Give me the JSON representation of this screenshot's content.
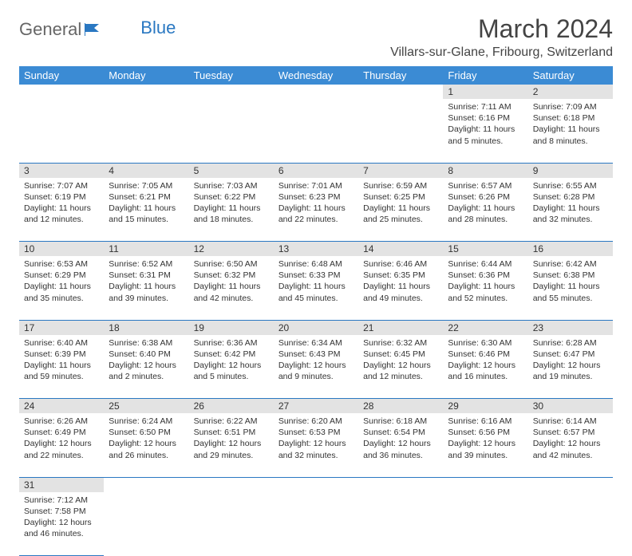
{
  "logo": {
    "text1": "General",
    "text2": "Blue"
  },
  "title": "March 2024",
  "location": "Villars-sur-Glane, Fribourg, Switzerland",
  "colors": {
    "header_bg": "#3b8bd4",
    "header_text": "#ffffff",
    "daynum_bg": "#e3e3e3",
    "row_divider": "#2a78c2",
    "text": "#333333",
    "logo_blue": "#2a78c2"
  },
  "layout": {
    "columns": 7,
    "rows": 6,
    "cell_font_size": 10.5,
    "header_font_size": 13,
    "title_font_size": 32,
    "location_font_size": 16
  },
  "days_of_week": [
    "Sunday",
    "Monday",
    "Tuesday",
    "Wednesday",
    "Thursday",
    "Friday",
    "Saturday"
  ],
  "cells": [
    {
      "day": "",
      "sunrise": "",
      "sunset": "",
      "daylight": ""
    },
    {
      "day": "",
      "sunrise": "",
      "sunset": "",
      "daylight": ""
    },
    {
      "day": "",
      "sunrise": "",
      "sunset": "",
      "daylight": ""
    },
    {
      "day": "",
      "sunrise": "",
      "sunset": "",
      "daylight": ""
    },
    {
      "day": "",
      "sunrise": "",
      "sunset": "",
      "daylight": ""
    },
    {
      "day": "1",
      "sunrise": "Sunrise: 7:11 AM",
      "sunset": "Sunset: 6:16 PM",
      "daylight": "Daylight: 11 hours and 5 minutes."
    },
    {
      "day": "2",
      "sunrise": "Sunrise: 7:09 AM",
      "sunset": "Sunset: 6:18 PM",
      "daylight": "Daylight: 11 hours and 8 minutes."
    },
    {
      "day": "3",
      "sunrise": "Sunrise: 7:07 AM",
      "sunset": "Sunset: 6:19 PM",
      "daylight": "Daylight: 11 hours and 12 minutes."
    },
    {
      "day": "4",
      "sunrise": "Sunrise: 7:05 AM",
      "sunset": "Sunset: 6:21 PM",
      "daylight": "Daylight: 11 hours and 15 minutes."
    },
    {
      "day": "5",
      "sunrise": "Sunrise: 7:03 AM",
      "sunset": "Sunset: 6:22 PM",
      "daylight": "Daylight: 11 hours and 18 minutes."
    },
    {
      "day": "6",
      "sunrise": "Sunrise: 7:01 AM",
      "sunset": "Sunset: 6:23 PM",
      "daylight": "Daylight: 11 hours and 22 minutes."
    },
    {
      "day": "7",
      "sunrise": "Sunrise: 6:59 AM",
      "sunset": "Sunset: 6:25 PM",
      "daylight": "Daylight: 11 hours and 25 minutes."
    },
    {
      "day": "8",
      "sunrise": "Sunrise: 6:57 AM",
      "sunset": "Sunset: 6:26 PM",
      "daylight": "Daylight: 11 hours and 28 minutes."
    },
    {
      "day": "9",
      "sunrise": "Sunrise: 6:55 AM",
      "sunset": "Sunset: 6:28 PM",
      "daylight": "Daylight: 11 hours and 32 minutes."
    },
    {
      "day": "10",
      "sunrise": "Sunrise: 6:53 AM",
      "sunset": "Sunset: 6:29 PM",
      "daylight": "Daylight: 11 hours and 35 minutes."
    },
    {
      "day": "11",
      "sunrise": "Sunrise: 6:52 AM",
      "sunset": "Sunset: 6:31 PM",
      "daylight": "Daylight: 11 hours and 39 minutes."
    },
    {
      "day": "12",
      "sunrise": "Sunrise: 6:50 AM",
      "sunset": "Sunset: 6:32 PM",
      "daylight": "Daylight: 11 hours and 42 minutes."
    },
    {
      "day": "13",
      "sunrise": "Sunrise: 6:48 AM",
      "sunset": "Sunset: 6:33 PM",
      "daylight": "Daylight: 11 hours and 45 minutes."
    },
    {
      "day": "14",
      "sunrise": "Sunrise: 6:46 AM",
      "sunset": "Sunset: 6:35 PM",
      "daylight": "Daylight: 11 hours and 49 minutes."
    },
    {
      "day": "15",
      "sunrise": "Sunrise: 6:44 AM",
      "sunset": "Sunset: 6:36 PM",
      "daylight": "Daylight: 11 hours and 52 minutes."
    },
    {
      "day": "16",
      "sunrise": "Sunrise: 6:42 AM",
      "sunset": "Sunset: 6:38 PM",
      "daylight": "Daylight: 11 hours and 55 minutes."
    },
    {
      "day": "17",
      "sunrise": "Sunrise: 6:40 AM",
      "sunset": "Sunset: 6:39 PM",
      "daylight": "Daylight: 11 hours and 59 minutes."
    },
    {
      "day": "18",
      "sunrise": "Sunrise: 6:38 AM",
      "sunset": "Sunset: 6:40 PM",
      "daylight": "Daylight: 12 hours and 2 minutes."
    },
    {
      "day": "19",
      "sunrise": "Sunrise: 6:36 AM",
      "sunset": "Sunset: 6:42 PM",
      "daylight": "Daylight: 12 hours and 5 minutes."
    },
    {
      "day": "20",
      "sunrise": "Sunrise: 6:34 AM",
      "sunset": "Sunset: 6:43 PM",
      "daylight": "Daylight: 12 hours and 9 minutes."
    },
    {
      "day": "21",
      "sunrise": "Sunrise: 6:32 AM",
      "sunset": "Sunset: 6:45 PM",
      "daylight": "Daylight: 12 hours and 12 minutes."
    },
    {
      "day": "22",
      "sunrise": "Sunrise: 6:30 AM",
      "sunset": "Sunset: 6:46 PM",
      "daylight": "Daylight: 12 hours and 16 minutes."
    },
    {
      "day": "23",
      "sunrise": "Sunrise: 6:28 AM",
      "sunset": "Sunset: 6:47 PM",
      "daylight": "Daylight: 12 hours and 19 minutes."
    },
    {
      "day": "24",
      "sunrise": "Sunrise: 6:26 AM",
      "sunset": "Sunset: 6:49 PM",
      "daylight": "Daylight: 12 hours and 22 minutes."
    },
    {
      "day": "25",
      "sunrise": "Sunrise: 6:24 AM",
      "sunset": "Sunset: 6:50 PM",
      "daylight": "Daylight: 12 hours and 26 minutes."
    },
    {
      "day": "26",
      "sunrise": "Sunrise: 6:22 AM",
      "sunset": "Sunset: 6:51 PM",
      "daylight": "Daylight: 12 hours and 29 minutes."
    },
    {
      "day": "27",
      "sunrise": "Sunrise: 6:20 AM",
      "sunset": "Sunset: 6:53 PM",
      "daylight": "Daylight: 12 hours and 32 minutes."
    },
    {
      "day": "28",
      "sunrise": "Sunrise: 6:18 AM",
      "sunset": "Sunset: 6:54 PM",
      "daylight": "Daylight: 12 hours and 36 minutes."
    },
    {
      "day": "29",
      "sunrise": "Sunrise: 6:16 AM",
      "sunset": "Sunset: 6:56 PM",
      "daylight": "Daylight: 12 hours and 39 minutes."
    },
    {
      "day": "30",
      "sunrise": "Sunrise: 6:14 AM",
      "sunset": "Sunset: 6:57 PM",
      "daylight": "Daylight: 12 hours and 42 minutes."
    },
    {
      "day": "31",
      "sunrise": "Sunrise: 7:12 AM",
      "sunset": "Sunset: 7:58 PM",
      "daylight": "Daylight: 12 hours and 46 minutes."
    },
    {
      "day": "",
      "sunrise": "",
      "sunset": "",
      "daylight": ""
    },
    {
      "day": "",
      "sunrise": "",
      "sunset": "",
      "daylight": ""
    },
    {
      "day": "",
      "sunrise": "",
      "sunset": "",
      "daylight": ""
    },
    {
      "day": "",
      "sunrise": "",
      "sunset": "",
      "daylight": ""
    },
    {
      "day": "",
      "sunrise": "",
      "sunset": "",
      "daylight": ""
    },
    {
      "day": "",
      "sunrise": "",
      "sunset": "",
      "daylight": ""
    }
  ]
}
